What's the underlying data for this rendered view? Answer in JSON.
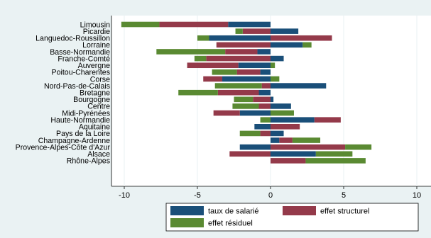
{
  "chart_data": {
    "type": "bar",
    "orientation": "horizontal",
    "stacked": true,
    "title": "",
    "xlabel": "",
    "ylabel": "",
    "xlim": [
      -11,
      10
    ],
    "xticks": [
      -10,
      -5,
      0,
      5,
      10
    ],
    "grid": true,
    "legend_position": "bottom",
    "categories": [
      "Limousin",
      "Picardie",
      "Languedoc-Roussillon",
      "Lorraine",
      "Basse-Normandie",
      "Franche-Comté",
      "Auvergne",
      "Poitou-Charentes",
      "Corse",
      "Nord-Pas-de-Calais",
      "Bretagne",
      "Bourgogne",
      "Centre",
      "Midi-Pyrénées",
      "Haute-Normandie",
      "Aquitaine",
      "Pays de la Loire",
      "Champagne-Ardenne",
      "Provence-Alpes-Côte d'Azur",
      "Alsace",
      "Rhône-Alpes"
    ],
    "series": [
      {
        "name": "taux de salarié",
        "color": "#1a4f79",
        "values": [
          -2.9,
          1.9,
          -4.2,
          2.2,
          -0.9,
          0.9,
          -2.2,
          -0.7,
          -3.3,
          3.8,
          -0.8,
          0.2,
          1.4,
          -2.1,
          3.0,
          -1.1,
          0.9,
          0.6,
          -2.1,
          3.1,
          0.0
        ]
      },
      {
        "name": "effet structurel",
        "color": "#943a4a",
        "values": [
          -4.7,
          -1.9,
          4.2,
          -3.7,
          -2.2,
          -4.4,
          -3.5,
          -1.6,
          -1.3,
          -0.6,
          -2.8,
          -1.2,
          -0.8,
          -1.8,
          1.8,
          2.0,
          -0.7,
          0.9,
          5.1,
          -2.8,
          2.4
        ]
      },
      {
        "name": "effet résiduel",
        "color": "#5a8a32",
        "values": [
          -2.6,
          -0.5,
          -0.8,
          0.6,
          -4.7,
          -0.8,
          0.3,
          -1.7,
          0.6,
          -3.2,
          -2.7,
          -1.3,
          -1.8,
          1.6,
          -0.7,
          0.0,
          -1.4,
          1.9,
          1.8,
          2.5,
          4.1
        ]
      }
    ]
  }
}
